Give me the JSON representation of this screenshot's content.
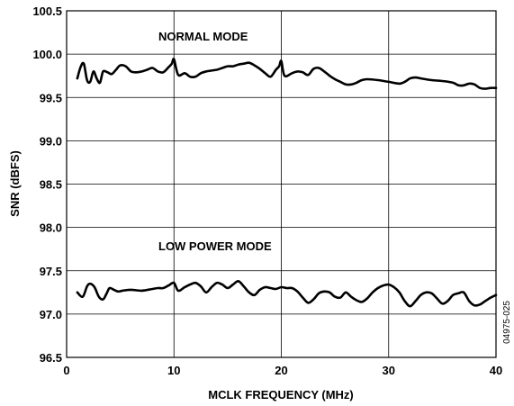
{
  "chart_data": {
    "type": "line",
    "title": "",
    "xlabel": "MCLK FREQUENCY (MHz)",
    "ylabel": "SNR (dBFS)",
    "xlim": [
      0,
      40
    ],
    "ylim": [
      96.5,
      100.5
    ],
    "x_ticks": [
      0,
      10,
      20,
      30,
      40
    ],
    "x_tick_labels": [
      "0",
      "10",
      "20",
      "30",
      "40"
    ],
    "y_ticks": [
      96.5,
      97.0,
      97.5,
      98.0,
      98.5,
      99.0,
      99.5,
      100.0,
      100.5
    ],
    "y_tick_labels": [
      "96.5",
      "97.0",
      "97.5",
      "98.0",
      "98.5",
      "99.0",
      "99.5",
      "100.0",
      "100.5"
    ],
    "grid": true,
    "figure_id": "04975-025",
    "annotations": [
      "NORMAL MODE",
      "LOW POWER MODE"
    ],
    "series": [
      {
        "x": [
          1,
          1.3,
          1.6,
          1.9,
          2.2,
          2.5,
          2.8,
          3.1,
          3.4,
          3.8,
          4.2,
          4.6,
          5.0,
          5.5,
          6.0,
          6.5,
          7.0,
          7.5,
          8.0,
          8.5,
          9.0,
          9.5,
          9.8,
          10.0,
          10.4,
          11.0,
          11.5,
          12.0,
          12.5,
          13.0,
          13.5,
          14.0,
          14.5,
          15.0,
          15.5,
          16.0,
          16.5,
          17.0,
          17.5,
          18.0,
          18.5,
          19.0,
          19.5,
          19.8,
          20.0,
          20.3,
          21.0,
          21.5,
          22.0,
          22.5,
          23.0,
          23.5,
          24.0,
          24.5,
          25.0,
          25.5,
          26.0,
          26.5,
          27.0,
          27.5,
          28.0,
          29.0,
          30.0,
          31.0,
          31.5,
          32.0,
          32.5,
          33.0,
          34.0,
          35.0,
          36.0,
          36.5,
          37.0,
          37.5,
          38.0,
          38.5,
          39.0,
          39.5,
          40.0
        ],
        "values": [
          99.72,
          99.85,
          99.89,
          99.7,
          99.68,
          99.8,
          99.72,
          99.67,
          99.8,
          99.79,
          99.77,
          99.82,
          99.87,
          99.86,
          99.8,
          99.79,
          99.8,
          99.82,
          99.84,
          99.8,
          99.79,
          99.85,
          99.89,
          99.94,
          99.76,
          99.78,
          99.74,
          99.74,
          99.78,
          99.8,
          99.81,
          99.82,
          99.84,
          99.86,
          99.86,
          99.88,
          99.89,
          99.9,
          99.87,
          99.83,
          99.78,
          99.74,
          99.82,
          99.86,
          99.92,
          99.75,
          99.78,
          99.8,
          99.79,
          99.76,
          99.83,
          99.84,
          99.8,
          99.75,
          99.71,
          99.68,
          99.65,
          99.65,
          99.67,
          99.7,
          99.71,
          99.7,
          99.68,
          99.66,
          99.68,
          99.72,
          99.73,
          99.72,
          99.7,
          99.69,
          99.67,
          99.64,
          99.64,
          99.66,
          99.65,
          99.61,
          99.6,
          99.61,
          99.61
        ]
      },
      {
        "x": [
          1,
          1.5,
          1.9,
          2.2,
          2.6,
          3.0,
          3.4,
          3.7,
          4.0,
          4.4,
          4.8,
          5.2,
          6.0,
          7.0,
          8.0,
          8.5,
          9.0,
          9.5,
          10.0,
          10.4,
          11.0,
          11.5,
          12.0,
          12.5,
          13.0,
          13.5,
          14.0,
          14.5,
          15.0,
          15.5,
          16.0,
          16.5,
          17.0,
          17.5,
          18.0,
          18.5,
          19.0,
          19.5,
          20.0,
          20.5,
          21.0,
          21.5,
          22.0,
          22.5,
          23.0,
          23.5,
          24.0,
          24.5,
          25.0,
          25.5,
          26.0,
          26.5,
          27.0,
          27.5,
          28.0,
          28.5,
          29.0,
          29.5,
          30.0,
          30.5,
          31.0,
          31.5,
          32.0,
          32.5,
          33.0,
          33.5,
          34.0,
          34.5,
          35.0,
          35.5,
          36.0,
          36.5,
          37.0,
          37.5,
          38.0,
          38.5,
          39.0,
          39.5,
          40.0
        ],
        "values": [
          97.25,
          97.2,
          97.32,
          97.35,
          97.31,
          97.2,
          97.17,
          97.23,
          97.3,
          97.28,
          97.26,
          97.27,
          97.28,
          97.27,
          97.29,
          97.3,
          97.3,
          97.33,
          97.36,
          97.27,
          97.31,
          97.34,
          97.36,
          97.32,
          97.25,
          97.31,
          97.36,
          97.34,
          97.3,
          97.34,
          97.38,
          97.32,
          97.25,
          97.22,
          97.28,
          97.31,
          97.3,
          97.29,
          97.31,
          97.3,
          97.3,
          97.26,
          97.19,
          97.13,
          97.17,
          97.24,
          97.26,
          97.25,
          97.2,
          97.19,
          97.25,
          97.2,
          97.16,
          97.14,
          97.18,
          97.25,
          97.3,
          97.33,
          97.34,
          97.31,
          97.25,
          97.15,
          97.09,
          97.15,
          97.22,
          97.25,
          97.24,
          97.18,
          97.12,
          97.15,
          97.22,
          97.24,
          97.25,
          97.15,
          97.1,
          97.11,
          97.15,
          97.19,
          97.22
        ]
      }
    ]
  }
}
